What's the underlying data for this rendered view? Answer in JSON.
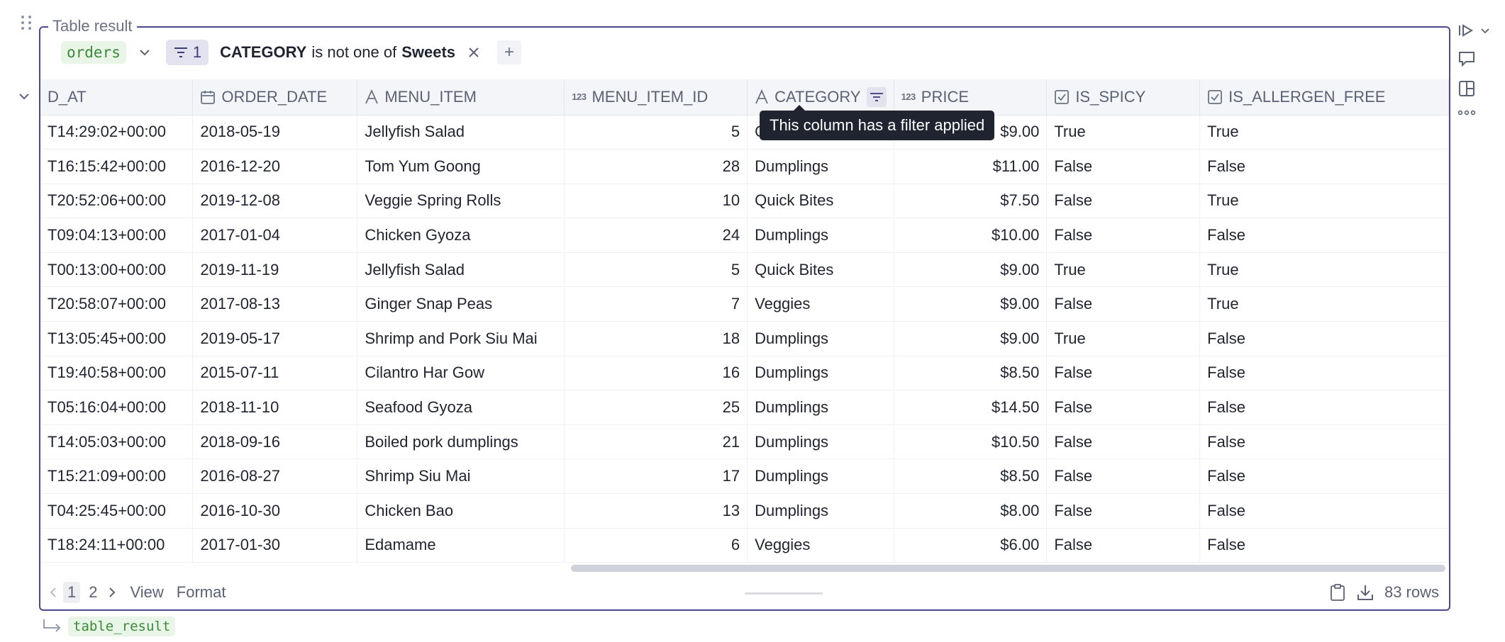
{
  "frame": {
    "legend": "Table result"
  },
  "toolbar": {
    "dataframe": "orders",
    "filter_count": "1",
    "filter": {
      "column": "CATEGORY",
      "operator": "is not one of",
      "value": "Sweets"
    },
    "add_label": "+"
  },
  "table": {
    "columns": [
      {
        "label": "D_AT",
        "icon": ""
      },
      {
        "label": "ORDER_DATE",
        "icon": "calendar-icon"
      },
      {
        "label": "MENU_ITEM",
        "icon": "text-type-icon"
      },
      {
        "label": "MENU_ITEM_ID",
        "icon": "number-type-icon",
        "icon_text": "123"
      },
      {
        "label": "CATEGORY",
        "icon": "text-type-icon"
      },
      {
        "label": "PRICE",
        "icon": "number-type-icon",
        "icon_text": "123"
      },
      {
        "label": "IS_SPICY",
        "icon": "checkbox-type-icon"
      },
      {
        "label": "IS_ALLERGEN_FREE",
        "icon": "checkbox-type-icon"
      }
    ],
    "rows": [
      [
        "T14:29:02+00:00",
        "2018-05-19",
        "Jellyfish Salad",
        "5",
        "Quick Bites",
        "$9.00",
        "True",
        "True"
      ],
      [
        "T16:15:42+00:00",
        "2016-12-20",
        "Tom Yum Goong",
        "28",
        "Dumplings",
        "$11.00",
        "False",
        "False"
      ],
      [
        "T20:52:06+00:00",
        "2019-12-08",
        "Veggie Spring Rolls",
        "10",
        "Quick Bites",
        "$7.50",
        "False",
        "True"
      ],
      [
        "T09:04:13+00:00",
        "2017-01-04",
        "Chicken Gyoza",
        "24",
        "Dumplings",
        "$10.00",
        "False",
        "False"
      ],
      [
        "T00:13:00+00:00",
        "2019-11-19",
        "Jellyfish Salad",
        "5",
        "Quick Bites",
        "$9.00",
        "True",
        "True"
      ],
      [
        "T20:58:07+00:00",
        "2017-08-13",
        "Ginger Snap Peas",
        "7",
        "Veggies",
        "$9.00",
        "False",
        "True"
      ],
      [
        "T13:05:45+00:00",
        "2019-05-17",
        "Shrimp and Pork Siu Mai",
        "18",
        "Dumplings",
        "$9.00",
        "True",
        "False"
      ],
      [
        "T19:40:58+00:00",
        "2015-07-11",
        "Cilantro Har Gow",
        "16",
        "Dumplings",
        "$8.50",
        "False",
        "False"
      ],
      [
        "T05:16:04+00:00",
        "2018-11-10",
        "Seafood Gyoza",
        "25",
        "Dumplings",
        "$14.50",
        "False",
        "False"
      ],
      [
        "T14:05:03+00:00",
        "2018-09-16",
        "Boiled pork dumplings",
        "21",
        "Dumplings",
        "$10.50",
        "False",
        "False"
      ],
      [
        "T15:21:09+00:00",
        "2016-08-27",
        "Shrimp Siu Mai",
        "17",
        "Dumplings",
        "$8.50",
        "False",
        "False"
      ],
      [
        "T04:25:45+00:00",
        "2016-10-30",
        "Chicken Bao",
        "13",
        "Dumplings",
        "$8.00",
        "False",
        "False"
      ],
      [
        "T18:24:11+00:00",
        "2017-01-30",
        "Edamame",
        "6",
        "Veggies",
        "$6.00",
        "False",
        "False"
      ]
    ]
  },
  "tooltip": "This column has a filter applied",
  "footer": {
    "pages": [
      "1",
      "2"
    ],
    "current_page": "1",
    "view_label": "View",
    "format_label": "Format",
    "row_count": "83 rows"
  },
  "output": {
    "variable": "table_result"
  },
  "colors": {
    "accent": "#4b4a8f",
    "df_chip_bg": "#e9f6e7",
    "df_chip_text": "#3a8a3a",
    "filter_badge_bg": "#e3e2ef"
  }
}
